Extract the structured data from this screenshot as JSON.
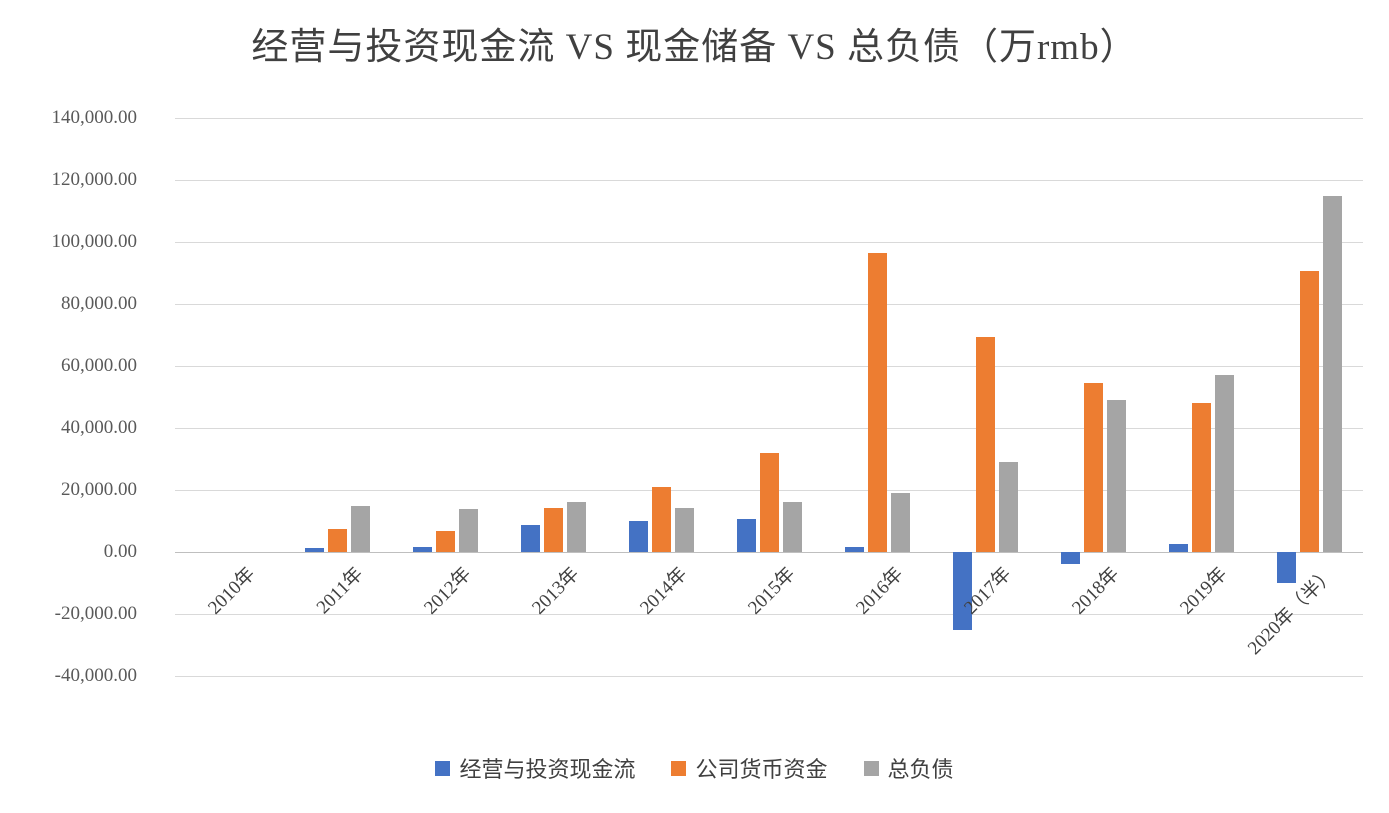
{
  "chart_data": {
    "type": "bar",
    "title": "经营与投资现金流 VS 现金储备 VS 总负债（万rmb）",
    "categories": [
      "2010年",
      "2011年",
      "2012年",
      "2013年",
      "2014年",
      "2015年",
      "2016年",
      "2017年",
      "2018年",
      "2019年",
      "2020年（半）"
    ],
    "series": [
      {
        "key": "operating-investing-cashflow",
        "name": "经营与投资现金流",
        "color": "#4472C4",
        "values": [
          0,
          1200,
          1600,
          8700,
          10000,
          10600,
          1700,
          -25000,
          -4000,
          2600,
          -10000
        ]
      },
      {
        "key": "company-cash-funds",
        "name": "公司货币资金",
        "color": "#ED7D31",
        "values": [
          0,
          7500,
          6800,
          14200,
          21000,
          32000,
          96500,
          69500,
          54500,
          48000,
          90500
        ]
      },
      {
        "key": "total-liabilities",
        "name": "总负债",
        "color": "#A5A5A5",
        "values": [
          0,
          15000,
          14000,
          16000,
          14200,
          16000,
          19000,
          29000,
          49000,
          57000,
          115000
        ]
      }
    ],
    "ylim": [
      -40000,
      140000
    ],
    "ytick_step": 20000,
    "ytick_labels": [
      "-40,000.00",
      "-20,000.00",
      "0.00",
      "20,000.00",
      "40,000.00",
      "60,000.00",
      "80,000.00",
      "100,000.00",
      "120,000.00",
      "140,000.00"
    ],
    "grid": true,
    "legend_position": "bottom"
  }
}
